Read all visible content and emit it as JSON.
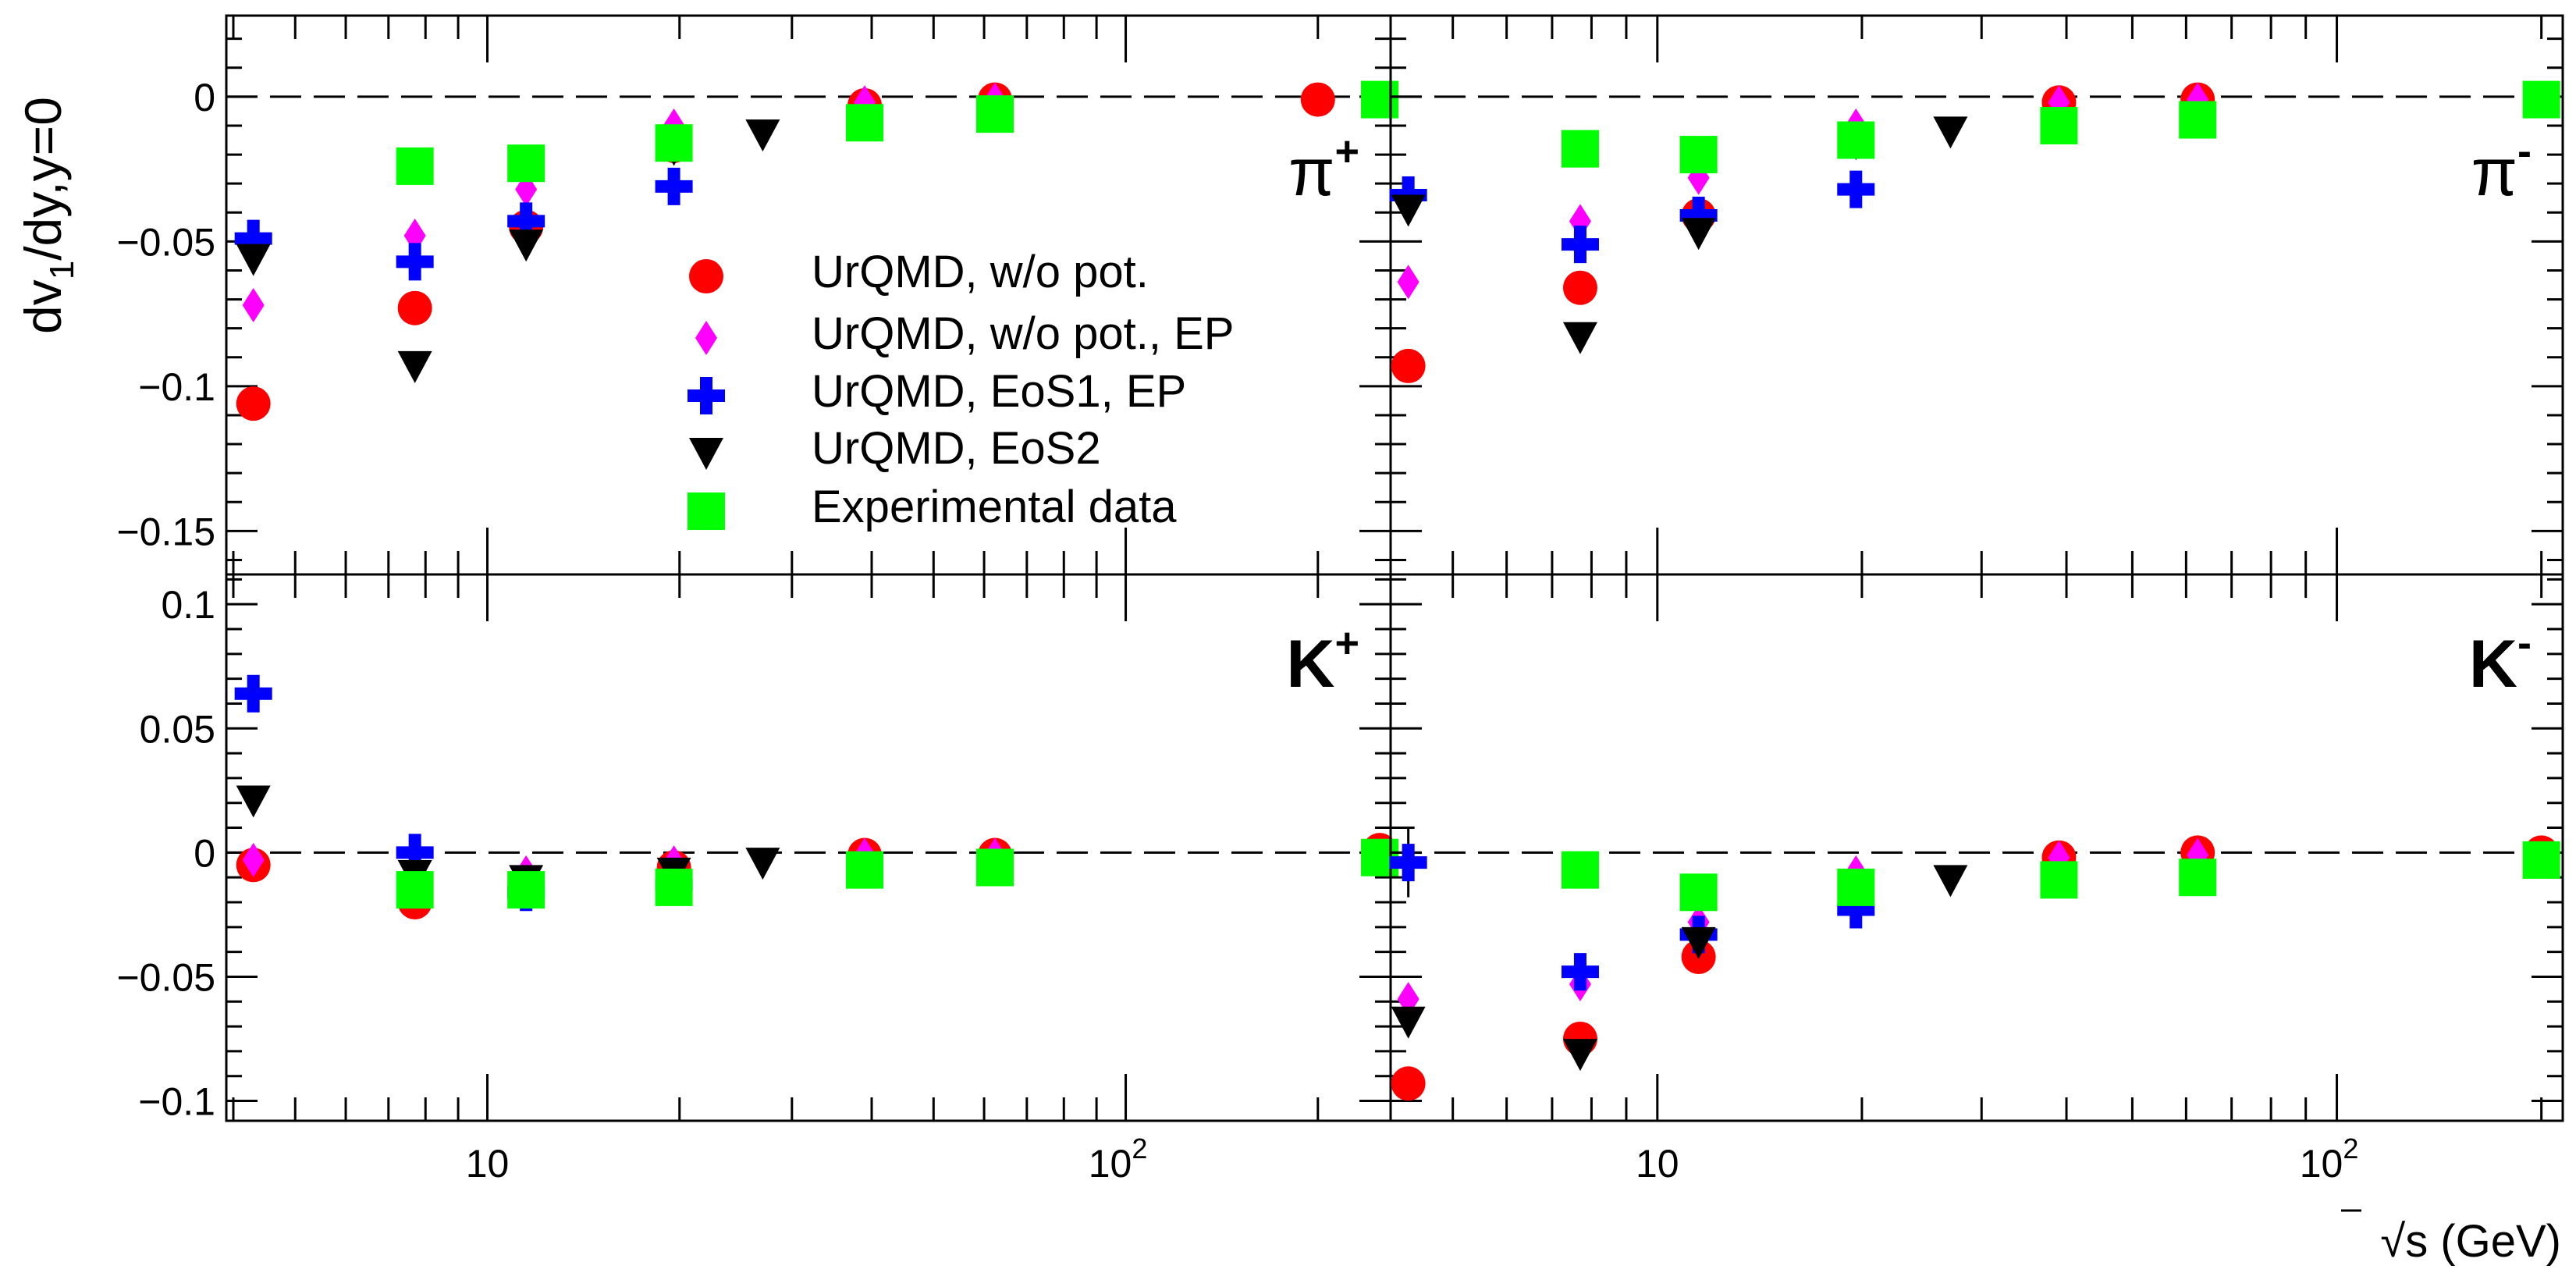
{
  "figure": {
    "ylabel_parts": [
      "dv",
      "1",
      "/dy,y=0"
    ],
    "xlabel_root": "√",
    "xlabel_rest": "s (GeV)",
    "decade_tick_labels": {
      "ten": "10",
      "hundred_base": "10",
      "hundred_exp": "2"
    }
  },
  "series_styles": [
    {
      "key": "wo_pot",
      "marker": "circle",
      "color": "#ff0000"
    },
    {
      "key": "wo_pot_ep",
      "marker": "diamond",
      "color": "#ff00ff"
    },
    {
      "key": "eos1_ep",
      "marker": "cross",
      "color": "#0000ff"
    },
    {
      "key": "eos2",
      "marker": "triangle-down",
      "color": "#000000"
    },
    {
      "key": "exp",
      "marker": "square",
      "color": "#00ff00"
    }
  ],
  "legend": {
    "entries": [
      {
        "label": "UrQMD, w/o pot.",
        "series": "wo_pot"
      },
      {
        "label": "UrQMD, w/o pot., EP",
        "series": "wo_pot_ep"
      },
      {
        "label": "UrQMD, EoS1, EP",
        "series": "eos1_ep"
      },
      {
        "label": "UrQMD, EoS2",
        "series": "eos2"
      },
      {
        "label": "Experimental data",
        "series": "exp"
      }
    ]
  },
  "chart_data": [
    {
      "type": "scatter",
      "panel": "top-left",
      "particle": {
        "base": "π",
        "charge": "+"
      },
      "xscale": "log",
      "xlim": [
        3.9,
        260
      ],
      "ylim": [
        -0.165,
        0.028
      ],
      "yticks": [
        0,
        -0.05,
        -0.1,
        -0.15
      ],
      "ytick_labels": [
        "0",
        "−0.05",
        "−0.1",
        "−0.15"
      ],
      "series": [
        {
          "name": "UrQMD, w/o pot.",
          "key": "wo_pot",
          "points": [
            [
              4.3,
              -0.106
            ],
            [
              7.7,
              -0.073
            ],
            [
              11.5,
              -0.045
            ],
            [
              19.6,
              -0.017
            ],
            [
              39,
              -0.003
            ],
            [
              62.4,
              -0.001
            ],
            [
              200,
              -0.001
            ]
          ]
        },
        {
          "name": "UrQMD, w/o pot., EP",
          "key": "wo_pot_ep",
          "points": [
            [
              4.3,
              -0.072
            ],
            [
              7.7,
              -0.048
            ],
            [
              11.5,
              -0.032
            ],
            [
              19.6,
              -0.01
            ],
            [
              39,
              -0.002
            ],
            [
              62.4,
              -0.001
            ]
          ]
        },
        {
          "name": "UrQMD, EoS1, EP",
          "key": "eos1_ep",
          "points": [
            [
              4.3,
              -0.049
            ],
            [
              7.7,
              -0.057
            ],
            [
              11.5,
              -0.043
            ],
            [
              19.6,
              -0.031
            ]
          ]
        },
        {
          "name": "UrQMD, EoS2",
          "key": "eos2",
          "points": [
            [
              4.3,
              -0.056
            ],
            [
              7.7,
              -0.093
            ],
            [
              11.5,
              -0.051
            ],
            [
              19.6,
              -0.018
            ],
            [
              27,
              -0.013
            ]
          ]
        },
        {
          "name": "Experimental data",
          "key": "exp",
          "points": [
            [
              7.7,
              -0.024
            ],
            [
              11.5,
              -0.023
            ],
            [
              19.6,
              -0.016
            ],
            [
              39,
              -0.009
            ],
            [
              62.4,
              -0.006
            ],
            [
              250,
              -0.001
            ]
          ]
        }
      ]
    },
    {
      "type": "scatter",
      "panel": "top-right",
      "particle": {
        "base": "π",
        "charge": "-"
      },
      "xscale": "log",
      "xlim": [
        4.05,
        215
      ],
      "ylim": [
        -0.165,
        0.028
      ],
      "yticks": [
        0,
        -0.05,
        -0.1,
        -0.15
      ],
      "ytick_labels": [],
      "series": [
        {
          "name": "UrQMD, w/o pot.",
          "key": "wo_pot",
          "points": [
            [
              4.3,
              -0.093
            ],
            [
              7.7,
              -0.066
            ],
            [
              11.5,
              -0.041
            ],
            [
              19.6,
              -0.015
            ],
            [
              39,
              -0.002
            ],
            [
              62.4,
              -0.001
            ],
            [
              200,
              -0.001
            ]
          ]
        },
        {
          "name": "UrQMD, w/o pot., EP",
          "key": "wo_pot_ep",
          "points": [
            [
              4.3,
              -0.064
            ],
            [
              7.7,
              -0.043
            ],
            [
              11.5,
              -0.028
            ],
            [
              19.6,
              -0.01
            ],
            [
              39,
              -0.002
            ],
            [
              62.4,
              -0.001
            ]
          ]
        },
        {
          "name": "UrQMD, EoS1, EP",
          "key": "eos1_ep",
          "points": [
            [
              4.3,
              -0.034
            ],
            [
              7.7,
              -0.051
            ],
            [
              11.5,
              -0.041
            ],
            [
              19.6,
              -0.032
            ]
          ]
        },
        {
          "name": "UrQMD, EoS2",
          "key": "eos2",
          "points": [
            [
              4.3,
              -0.039
            ],
            [
              7.7,
              -0.083
            ],
            [
              11.5,
              -0.047
            ],
            [
              19.6,
              -0.016
            ],
            [
              27,
              -0.012
            ]
          ]
        },
        {
          "name": "Experimental data",
          "key": "exp",
          "points": [
            [
              7.7,
              -0.018
            ],
            [
              11.5,
              -0.02
            ],
            [
              19.6,
              -0.015
            ],
            [
              39,
              -0.01
            ],
            [
              62.4,
              -0.008
            ],
            [
              200,
              -0.001
            ]
          ]
        }
      ]
    },
    {
      "type": "scatter",
      "panel": "bottom-left",
      "particle": {
        "base": "K",
        "charge": "+"
      },
      "xscale": "log",
      "xlim": [
        3.9,
        260
      ],
      "ylim": [
        -0.108,
        0.112
      ],
      "yticks": [
        0.1,
        0.05,
        0,
        -0.05,
        -0.1
      ],
      "ytick_labels": [
        "0.1",
        "0.05",
        "0",
        "−0.05",
        "−0.1"
      ],
      "xtick_labels": true,
      "series": [
        {
          "name": "UrQMD, w/o pot.",
          "key": "wo_pot",
          "points": [
            [
              4.3,
              -0.005
            ],
            [
              7.7,
              -0.02
            ],
            [
              11.5,
              -0.013
            ],
            [
              19.6,
              -0.006
            ],
            [
              39,
              -0.001
            ],
            [
              62.4,
              -0.001
            ],
            [
              250,
              0.001
            ]
          ]
        },
        {
          "name": "UrQMD, w/o pot., EP",
          "key": "wo_pot_ep",
          "points": [
            [
              4.3,
              -0.003
            ],
            [
              7.7,
              -0.014
            ],
            [
              11.5,
              -0.008
            ],
            [
              19.6,
              -0.004
            ],
            [
              39,
              -0.001
            ],
            [
              62.4,
              -0.001
            ]
          ]
        },
        {
          "name": "UrQMD, EoS1, EP",
          "key": "eos1_ep",
          "points": [
            [
              4.3,
              0.064
            ],
            [
              7.7,
              0.0
            ],
            [
              11.5,
              -0.016
            ],
            [
              19.6,
              -0.013
            ]
          ]
        },
        {
          "name": "UrQMD, EoS2",
          "key": "eos2",
          "points": [
            [
              4.3,
              0.021
            ],
            [
              7.7,
              -0.009
            ],
            [
              11.5,
              -0.011
            ],
            [
              19.6,
              -0.008
            ],
            [
              27,
              -0.004
            ]
          ]
        },
        {
          "name": "Experimental data",
          "key": "exp",
          "points": [
            [
              7.7,
              -0.015
            ],
            [
              11.5,
              -0.015
            ],
            [
              19.6,
              -0.014
            ],
            [
              39,
              -0.007
            ],
            [
              62.4,
              -0.006
            ],
            [
              250,
              -0.002
            ]
          ]
        }
      ]
    },
    {
      "type": "scatter",
      "panel": "bottom-right",
      "particle": {
        "base": "K",
        "charge": "-"
      },
      "xscale": "log",
      "xlim": [
        4.05,
        215
      ],
      "ylim": [
        -0.108,
        0.112
      ],
      "yticks": [
        0.1,
        0.05,
        0,
        -0.05,
        -0.1
      ],
      "ytick_labels": [],
      "xtick_labels": true,
      "series": [
        {
          "name": "UrQMD, w/o pot.",
          "key": "wo_pot",
          "points": [
            [
              4.3,
              -0.093
            ],
            [
              7.7,
              -0.075
            ],
            [
              11.5,
              -0.042
            ],
            [
              19.6,
              -0.013
            ],
            [
              39,
              -0.002
            ],
            [
              62.4,
              0.0
            ],
            [
              200,
              0.0
            ]
          ]
        },
        {
          "name": "UrQMD, w/o pot., EP",
          "key": "wo_pot_ep",
          "points": [
            [
              4.3,
              -0.059
            ],
            [
              7.7,
              -0.053
            ],
            [
              11.5,
              -0.028
            ],
            [
              19.6,
              -0.008
            ],
            [
              39,
              -0.002
            ],
            [
              62.4,
              -0.001
            ]
          ]
        },
        {
          "name": "UrQMD, EoS1, EP",
          "key": "eos1_ep",
          "points": [
            [
              4.3,
              -0.004
            ],
            [
              7.7,
              -0.048
            ],
            [
              11.5,
              -0.033
            ],
            [
              19.6,
              -0.023
            ]
          ],
          "yerr": [
            0.014,
            0,
            0,
            0
          ]
        },
        {
          "name": "UrQMD, EoS2",
          "key": "eos2",
          "points": [
            [
              4.3,
              -0.068
            ],
            [
              7.7,
              -0.081
            ],
            [
              11.5,
              -0.036
            ],
            [
              19.6,
              -0.015
            ],
            [
              27,
              -0.011
            ]
          ]
        },
        {
          "name": "Experimental data",
          "key": "exp",
          "points": [
            [
              7.7,
              -0.007
            ],
            [
              11.5,
              -0.016
            ],
            [
              19.6,
              -0.014
            ],
            [
              39,
              -0.011
            ],
            [
              62.4,
              -0.01
            ],
            [
              200,
              -0.003
            ]
          ]
        }
      ]
    }
  ]
}
